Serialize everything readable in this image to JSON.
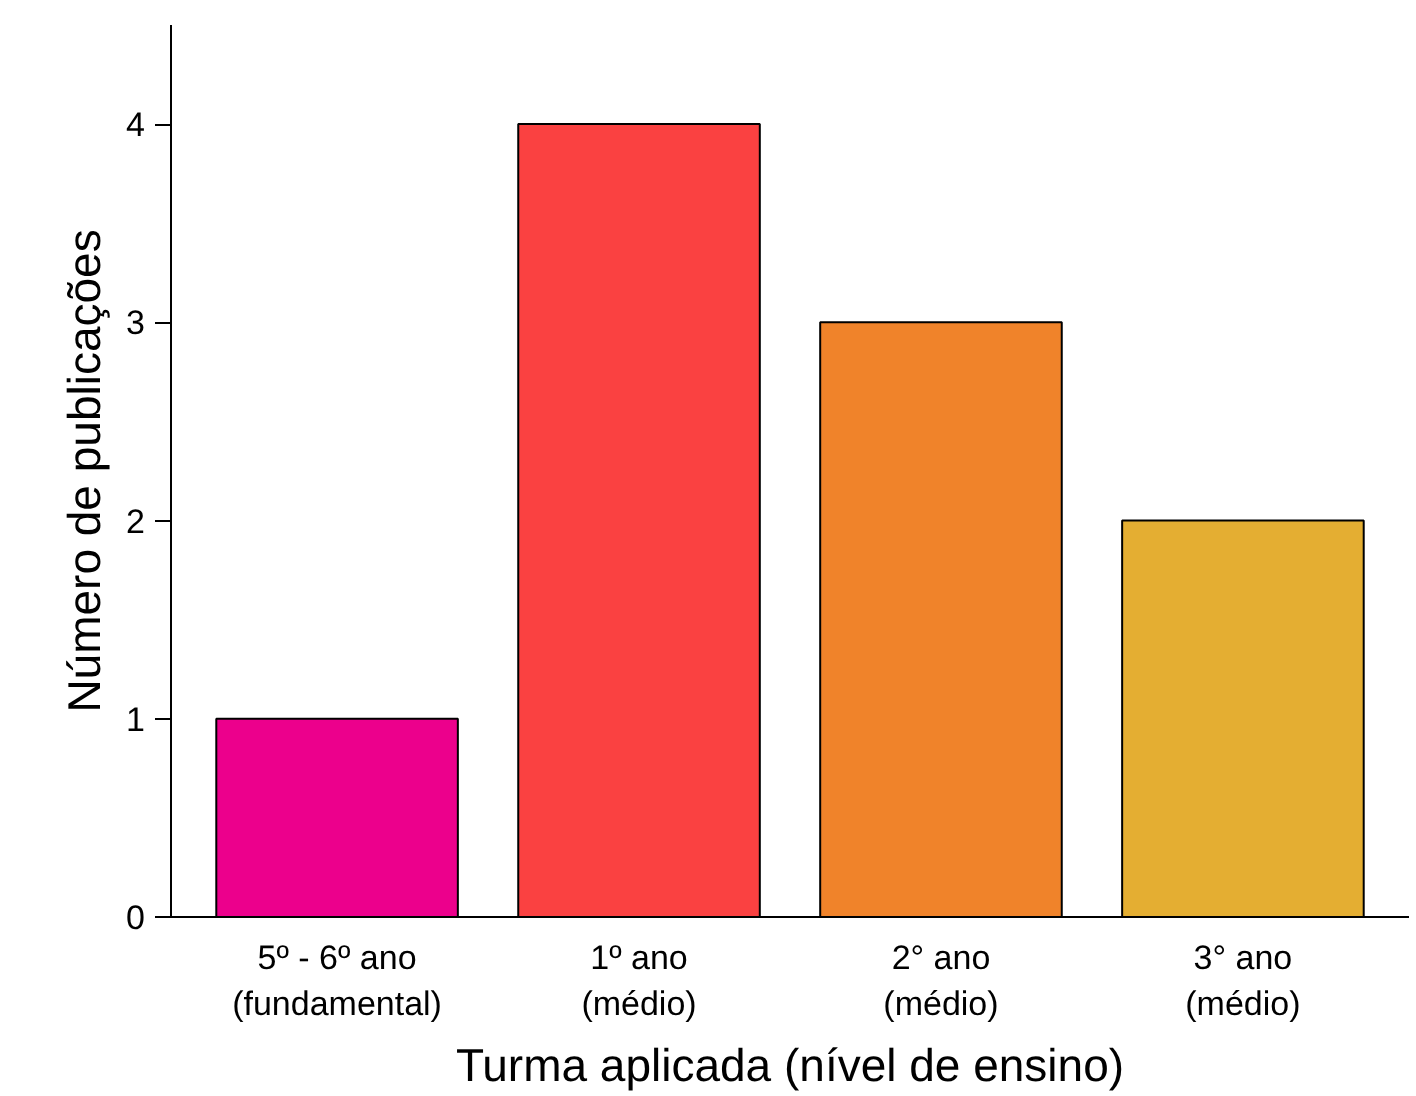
{
  "chart_data": {
    "type": "bar",
    "xlabel": "Turma aplicada (nível de ensino)",
    "ylabel": "Número de publicações",
    "categories": [
      "5º - 6º ano\n(fundamental)",
      "1º ano\n(médio)",
      "2° ano\n(médio)",
      "3° ano\n(médio)"
    ],
    "values": [
      1,
      4,
      3,
      2
    ],
    "colors": [
      "#ec008c",
      "#fa4141",
      "#f0832a",
      "#e4ae32"
    ],
    "ylim": [
      0,
      4.5
    ],
    "yticks": [
      0,
      1,
      2,
      3,
      4
    ],
    "grid": false
  }
}
